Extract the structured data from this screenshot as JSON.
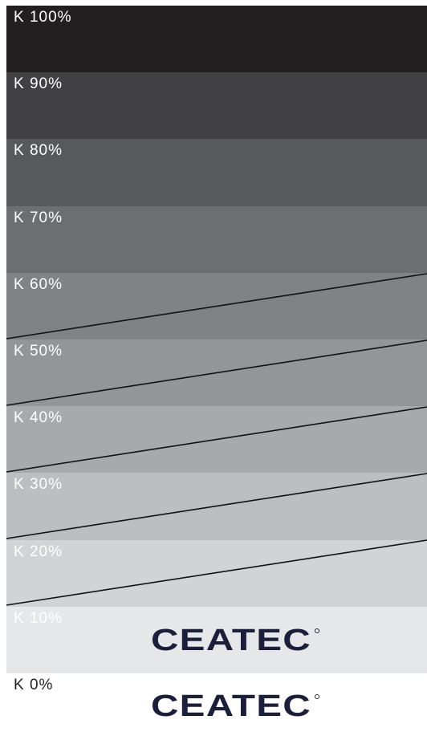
{
  "swatches": [
    {
      "label": "K 100%",
      "k": 100,
      "color": "#231f20",
      "text_color": "#ffffff"
    },
    {
      "label": "K 90%",
      "k": 90,
      "color": "#414042",
      "text_color": "#ffffff"
    },
    {
      "label": "K 80%",
      "k": 80,
      "color": "#58595b",
      "text_color": "#ffffff"
    },
    {
      "label": "K 70%",
      "k": 70,
      "color": "#6d6e71",
      "text_color": "#ffffff"
    },
    {
      "label": "K 60%",
      "k": 60,
      "color": "#808285",
      "text_color": "#ffffff"
    },
    {
      "label": "K 50%",
      "k": 50,
      "color": "#939598",
      "text_color": "#ffffff"
    },
    {
      "label": "K 40%",
      "k": 40,
      "color": "#a7a9ac",
      "text_color": "#ffffff"
    },
    {
      "label": "K 30%",
      "k": 30,
      "color": "#bcbec0",
      "text_color": "#ffffff"
    },
    {
      "label": "K 20%",
      "k": 20,
      "color": "#d1d3d4",
      "text_color": "#ffffff"
    },
    {
      "label": "K 10%",
      "k": 10,
      "color": "#e6e7e8",
      "text_color": "#ffffff"
    },
    {
      "label": "K 0%",
      "k": 0,
      "color": "#ffffff",
      "text_color": "#231f20"
    }
  ],
  "logo": {
    "text": "CEATEC",
    "color": "#1b1f3b"
  },
  "line_color": "#111111"
}
